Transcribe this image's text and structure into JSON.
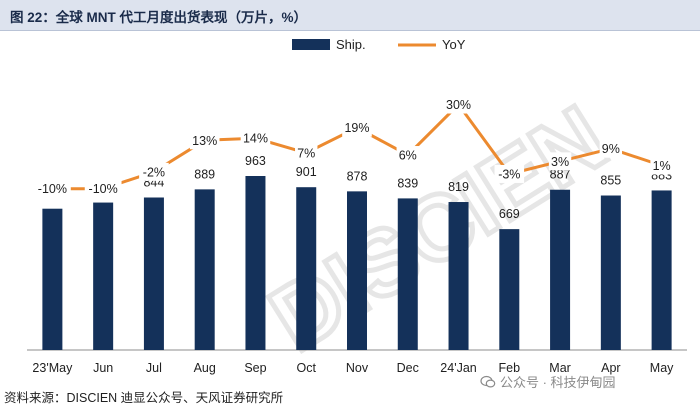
{
  "title": "图 22：全球 MNT 代工月度出货表现（万片，%）",
  "source": "资料来源：DISCIEN 迪显公众号、天风证券研究所",
  "watermark": "公众号 · 科技伊甸园",
  "background_watermark": "DISCIEN",
  "colors": {
    "bar": "#14315a",
    "line": "#ec8a2f",
    "title_bg": "#dde3ee"
  },
  "chart_data": {
    "type": "bar+line",
    "categories": [
      "23'May",
      "Jun",
      "Jul",
      "Aug",
      "Sep",
      "Oct",
      "Nov",
      "Dec",
      "24'Jan",
      "Feb",
      "Mar",
      "Apr",
      "May"
    ],
    "series": [
      {
        "name": "Ship.",
        "type": "bar",
        "values": [
          782,
          816,
          844,
          889,
          963,
          901,
          878,
          839,
          819,
          669,
          887,
          855,
          883
        ],
        "labels_shown": [
          false,
          false,
          true,
          true,
          true,
          true,
          true,
          true,
          true,
          true,
          true,
          true,
          true
        ]
      },
      {
        "name": "YoY",
        "type": "line",
        "values": [
          -10,
          -10,
          -2,
          13,
          14,
          7,
          19,
          6,
          30,
          -3,
          3,
          9,
          1
        ],
        "labels": [
          "-10%",
          "-10%",
          "-2%",
          "13%",
          "14%",
          "7%",
          "19%",
          "6%",
          "30%",
          "-3%",
          "3%",
          "9%",
          "1%"
        ]
      }
    ],
    "bar_ylim": [
      0,
      1400
    ],
    "line_ylim": [
      -80,
      35
    ],
    "legend": [
      "Ship.",
      "YoY"
    ],
    "legend_position": "top-center",
    "grid": false
  }
}
